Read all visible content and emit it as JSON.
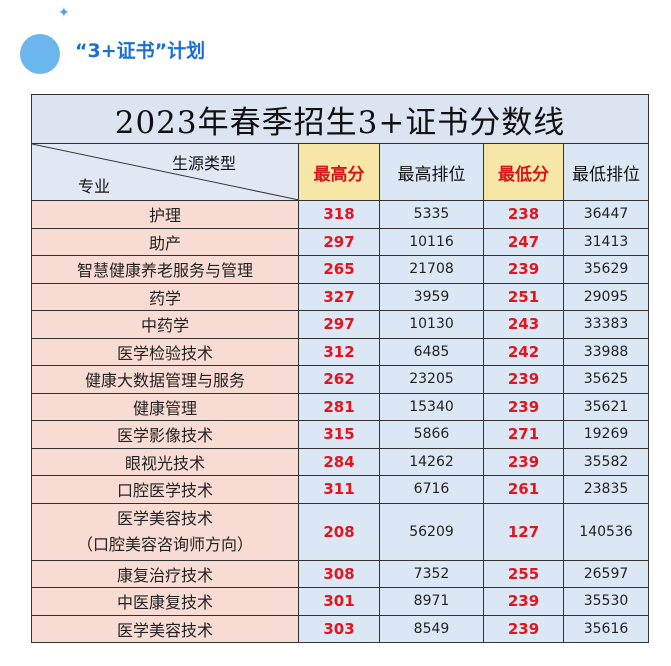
{
  "header": {
    "sparkle": "✦",
    "title": "“3+证书”计划"
  },
  "table": {
    "title": "2023年春季招生3+证书分数线",
    "diag_top": "生源类型",
    "diag_bottom": "专业",
    "columns": [
      "最高分",
      "最高排位",
      "最低分",
      "最低排位"
    ],
    "rows": [
      {
        "major": "护理",
        "max_score": "318",
        "max_rank": "5335",
        "min_score": "238",
        "min_rank": "36447"
      },
      {
        "major": "助产",
        "max_score": "297",
        "max_rank": "10116",
        "min_score": "247",
        "min_rank": "31413"
      },
      {
        "major": "智慧健康养老服务与管理",
        "max_score": "265",
        "max_rank": "21708",
        "min_score": "239",
        "min_rank": "35629"
      },
      {
        "major": "药学",
        "max_score": "327",
        "max_rank": "3959",
        "min_score": "251",
        "min_rank": "29095"
      },
      {
        "major": "中药学",
        "max_score": "297",
        "max_rank": "10130",
        "min_score": "243",
        "min_rank": "33383"
      },
      {
        "major": "医学检验技术",
        "max_score": "312",
        "max_rank": "6485",
        "min_score": "242",
        "min_rank": "33988"
      },
      {
        "major": "健康大数据管理与服务",
        "max_score": "262",
        "max_rank": "23205",
        "min_score": "239",
        "min_rank": "35625"
      },
      {
        "major": "健康管理",
        "max_score": "281",
        "max_rank": "15340",
        "min_score": "239",
        "min_rank": "35621"
      },
      {
        "major": "医学影像技术",
        "max_score": "315",
        "max_rank": "5866",
        "min_score": "271",
        "min_rank": "19269"
      },
      {
        "major": "眼视光技术",
        "max_score": "284",
        "max_rank": "14262",
        "min_score": "239",
        "min_rank": "35582"
      },
      {
        "major": "口腔医学技术",
        "max_score": "311",
        "max_rank": "6716",
        "min_score": "261",
        "min_rank": "23835"
      },
      {
        "major": "医学美容技术",
        "major_line2": "（口腔美容咨询师方向）",
        "max_score": "208",
        "max_rank": "56209",
        "min_score": "127",
        "min_rank": "140536"
      },
      {
        "major": "康复治疗技术",
        "max_score": "308",
        "max_rank": "7352",
        "min_score": "255",
        "min_rank": "26597"
      },
      {
        "major": "中医康复技术",
        "max_score": "301",
        "max_rank": "8971",
        "min_score": "239",
        "min_rank": "35530"
      },
      {
        "major": "医学美容技术",
        "max_score": "303",
        "max_rank": "8549",
        "min_score": "239",
        "min_rank": "35616"
      }
    ]
  }
}
